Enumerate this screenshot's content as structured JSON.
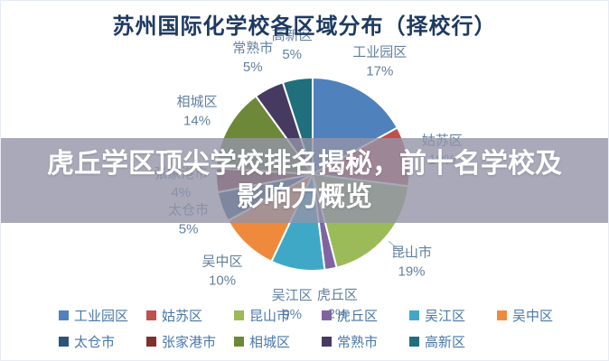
{
  "title": "苏州国际化学校各区域分布（择校行）",
  "overlay": {
    "line1": "虎丘学区顶尖学校排名揭秘，前十名学校及",
    "line2": "影响力概览",
    "bg_color": "rgba(148,148,168,0.8)",
    "text_color": "#ffffff"
  },
  "chart_data": {
    "type": "pie",
    "title": "苏州国际化学校各区域分布（择校行）",
    "unit": "%",
    "start_angle_deg": 0,
    "direction": "clockwise",
    "grid": false,
    "legend_position": "bottom",
    "legend_rows": [
      6,
      5
    ],
    "label_color": "#62809f",
    "legend_text_color": "#4a78a8",
    "series": [
      {
        "name": "工业园区",
        "value": 17,
        "color": "#4f81bd"
      },
      {
        "name": "姑苏区",
        "value": 10,
        "color": "#c0504d"
      },
      {
        "name": "昆山市",
        "value": 19,
        "color": "#9bbb59",
        "callout": true
      },
      {
        "name": "虎丘区",
        "value": 2,
        "color": "#8064a2"
      },
      {
        "name": "吴江区",
        "value": 9,
        "color": "#3fa8c6"
      },
      {
        "name": "吴中区",
        "value": 10,
        "color": "#ef8a3c"
      },
      {
        "name": "太仓市",
        "value": 5,
        "color": "#2a5578"
      },
      {
        "name": "张家港市",
        "value": 4,
        "color": "#7d302c"
      },
      {
        "name": "相城区",
        "value": 14,
        "color": "#6e8839"
      },
      {
        "name": "常熟市",
        "value": 5,
        "color": "#463a60"
      },
      {
        "name": "高新区",
        "value": 5,
        "color": "#1f6f7c"
      }
    ]
  }
}
